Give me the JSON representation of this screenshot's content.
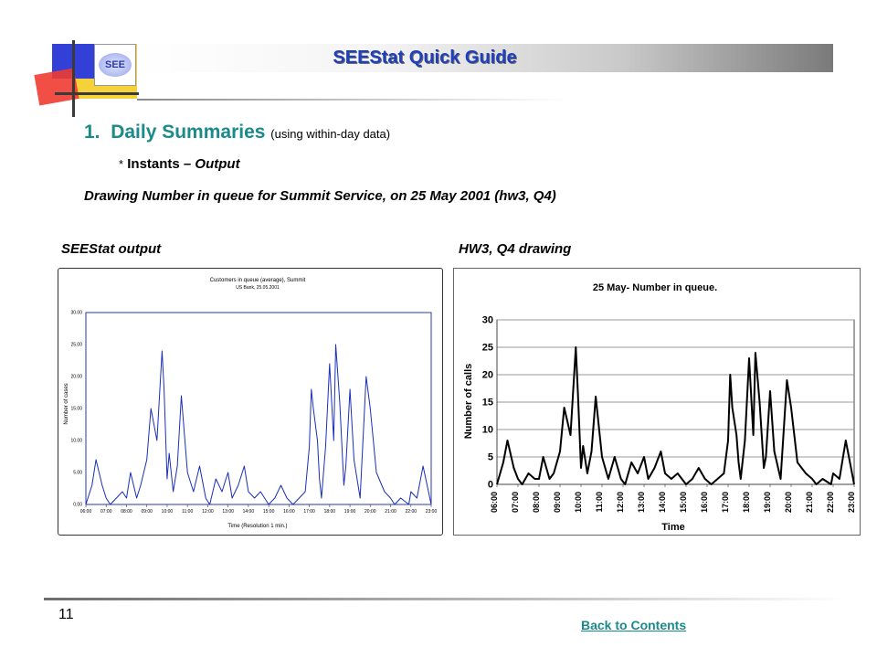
{
  "header": {
    "title": "SEEStat Quick Guide",
    "logo_text": "SEE"
  },
  "section": {
    "number": "1.",
    "heading": "Daily Summaries",
    "note": "(using within-day data)",
    "sub_bullet": "*",
    "sub_label": "Instants – ",
    "sub_label_italic": "Output",
    "description": "Drawing Number in queue for Summit Service, on 25 May 2001 (hw3, Q4)"
  },
  "captions": {
    "left": "SEEStat output",
    "right": "HW3, Q4 drawing"
  },
  "footer": {
    "page_number": "11",
    "back_link": "Back to Contents"
  },
  "colors": {
    "title": "#1f3fbf",
    "heading": "#1a8a8a",
    "seestat_line": "#1b2fb8",
    "hw_line": "#000000"
  },
  "chart_data": [
    {
      "type": "line",
      "title": "Customers in queue (average), Summit",
      "subtitle": "US Bank, 25.05.2001",
      "xlabel": "Time (Resolution 1 min.)",
      "ylabel": "Number of cases",
      "ylim": [
        0,
        30
      ],
      "yticks": [
        "0.00",
        "5.00",
        "10.00",
        "15.00",
        "20.00",
        "25.00",
        "30.00"
      ],
      "x_tick_labels": [
        "06:00",
        "07:00",
        "08:00",
        "09:00",
        "10:00",
        "11:00",
        "12:00",
        "13:00",
        "14:00",
        "15:00",
        "16:00",
        "17:00",
        "18:00",
        "19:00",
        "20:00",
        "21:00",
        "22:00",
        "23:00"
      ],
      "xlim": [
        6,
        23
      ],
      "series": [
        {
          "x": [
            6.0,
            6.3,
            6.5,
            6.8,
            7.0,
            7.2,
            7.5,
            7.8,
            8.0,
            8.2,
            8.5,
            8.7,
            9.0,
            9.2,
            9.5,
            9.75,
            9.85,
            10.0,
            10.1,
            10.3,
            10.5,
            10.7,
            11.0,
            11.3,
            11.6,
            11.9,
            12.1,
            12.4,
            12.7,
            13.0,
            13.2,
            13.5,
            13.8,
            14.0,
            14.3,
            14.6,
            15.0,
            15.3,
            15.6,
            15.9,
            16.2,
            16.5,
            16.8,
            17.0,
            17.1,
            17.2,
            17.4,
            17.5,
            17.6,
            17.8,
            18.0,
            18.2,
            18.3,
            18.5,
            18.7,
            18.8,
            19.0,
            19.2,
            19.5,
            19.8,
            20.0,
            20.3,
            20.7,
            21.0,
            21.2,
            21.5,
            21.9,
            22.0,
            22.3,
            22.6,
            23.0
          ],
          "y": [
            0,
            3,
            7,
            3,
            1,
            0,
            1,
            2,
            1,
            5,
            1,
            3,
            7,
            15,
            10,
            24,
            18,
            4,
            8,
            2,
            6,
            17,
            5,
            2,
            6,
            1,
            0,
            4,
            2,
            5,
            1,
            3,
            6,
            2,
            1,
            2,
            0,
            1,
            3,
            1,
            0,
            1,
            2,
            9,
            18,
            15,
            10,
            4,
            1,
            9,
            22,
            10,
            25,
            16,
            3,
            6,
            18,
            7,
            1,
            20,
            15,
            5,
            2,
            1,
            0,
            1,
            0,
            2,
            1,
            6,
            0
          ]
        }
      ]
    },
    {
      "type": "line",
      "title": "25 May- Number in queue.",
      "xlabel": "Time",
      "ylabel": "Number of calls",
      "ylim": [
        0,
        30
      ],
      "yticks": [
        0,
        5,
        10,
        15,
        20,
        25,
        30
      ],
      "x_tick_labels": [
        "06:00",
        "07:00",
        "08:00",
        "09:00",
        "10:00",
        "11:00",
        "12:00",
        "13:00",
        "14:00",
        "15:00",
        "16:00",
        "17:00",
        "18:00",
        "19:00",
        "20:00",
        "21:00",
        "22:00",
        "23:00"
      ],
      "xlim": [
        6,
        23
      ],
      "series": [
        {
          "x": [
            6.0,
            6.3,
            6.5,
            6.8,
            7.0,
            7.2,
            7.5,
            7.8,
            8.0,
            8.2,
            8.5,
            8.7,
            9.0,
            9.2,
            9.5,
            9.75,
            9.85,
            10.0,
            10.1,
            10.3,
            10.5,
            10.7,
            11.0,
            11.3,
            11.6,
            11.9,
            12.1,
            12.4,
            12.7,
            13.0,
            13.2,
            13.5,
            13.8,
            14.0,
            14.3,
            14.6,
            15.0,
            15.3,
            15.6,
            15.9,
            16.2,
            16.5,
            16.8,
            17.0,
            17.1,
            17.2,
            17.4,
            17.5,
            17.6,
            17.8,
            18.0,
            18.2,
            18.3,
            18.5,
            18.7,
            18.8,
            19.0,
            19.2,
            19.5,
            19.8,
            20.0,
            20.3,
            20.7,
            21.0,
            21.2,
            21.5,
            21.9,
            22.0,
            22.3,
            22.6,
            23.0
          ],
          "y": [
            0,
            4,
            8,
            3,
            1,
            0,
            2,
            1,
            1,
            5,
            1,
            2,
            6,
            14,
            9,
            25,
            17,
            3,
            7,
            2,
            6,
            16,
            5,
            1,
            5,
            1,
            0,
            4,
            2,
            5,
            1,
            3,
            6,
            2,
            1,
            2,
            0,
            1,
            3,
            1,
            0,
            1,
            2,
            8,
            20,
            14,
            9,
            4,
            1,
            8,
            23,
            9,
            24,
            15,
            3,
            5,
            17,
            6,
            1,
            19,
            14,
            4,
            2,
            1,
            0,
            1,
            0,
            2,
            1,
            8,
            0
          ]
        }
      ]
    }
  ]
}
